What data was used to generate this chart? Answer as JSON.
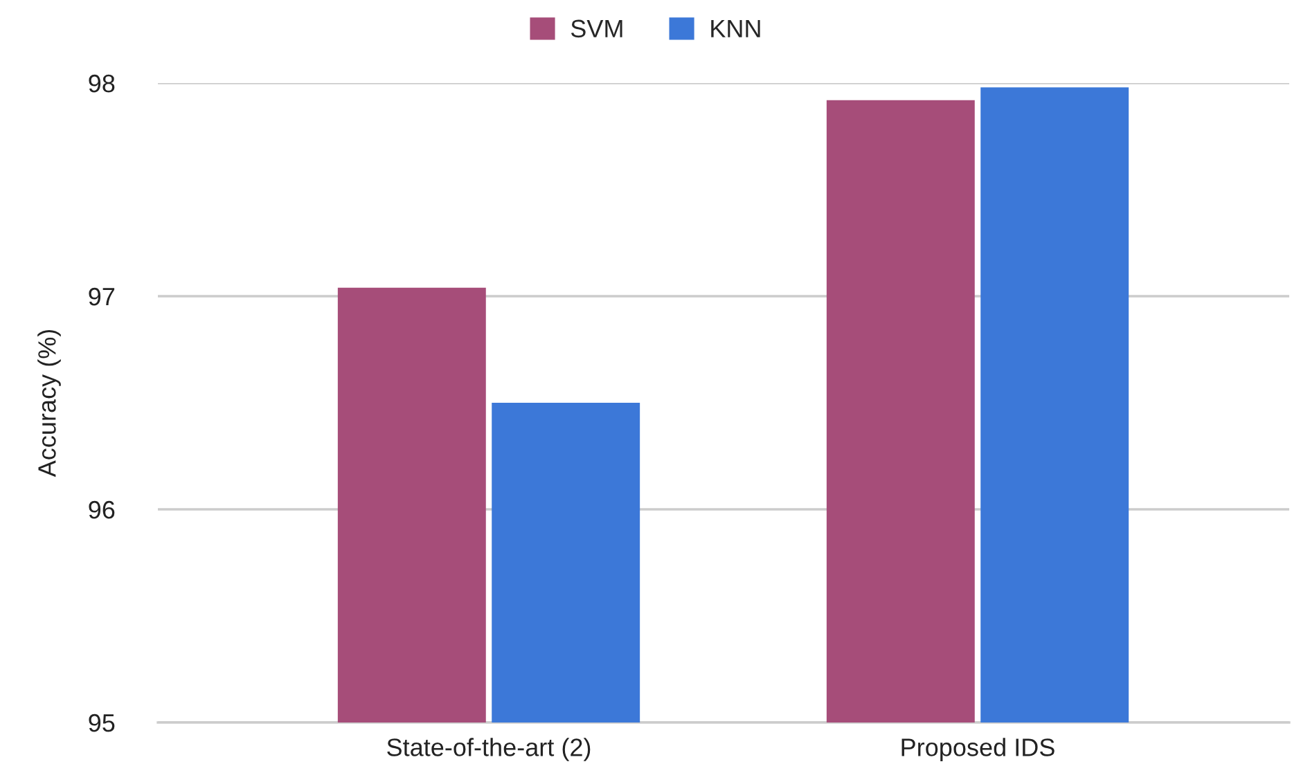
{
  "chart_data": {
    "type": "bar",
    "ylabel": "Accuracy (%)",
    "categories": [
      "State-of-the-art (2)",
      "Proposed IDS"
    ],
    "series": [
      {
        "name": "SVM",
        "color": "#a64d79",
        "values": [
          97.04,
          97.92
        ]
      },
      {
        "name": "KNN",
        "color": "#3c78d8",
        "values": [
          96.5,
          97.98
        ]
      }
    ],
    "ylim": [
      95,
      98
    ],
    "yticks": [
      95,
      96,
      97,
      98
    ],
    "grid": "y",
    "legend": "top"
  }
}
